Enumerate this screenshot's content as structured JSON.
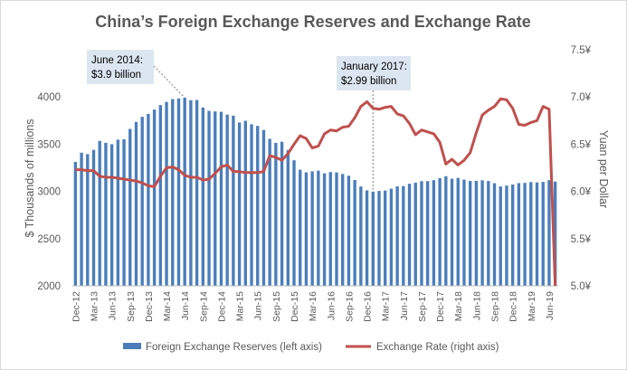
{
  "chart_data": {
    "type": "bar+line",
    "title": "China’s Foreign Exchange Reserves and Exchange Rate",
    "y_left_label": "$ Thousands of millions",
    "y_right_label": "Yuan per Dollar",
    "y_left_range": [
      2000,
      4500
    ],
    "y_left_ticks": [
      "2000",
      "2500",
      "3000",
      "3500",
      "4000"
    ],
    "y_left_tick_values": [
      2000,
      2500,
      3000,
      3500,
      4000
    ],
    "y_right_range": [
      5.0,
      7.5
    ],
    "y_right_ticks": [
      "5.0¥",
      "5.5¥",
      "6.0¥",
      "6.5¥",
      "7.0¥",
      "7.5¥"
    ],
    "y_right_tick_values": [
      5.0,
      5.5,
      6.0,
      6.5,
      7.0,
      7.5
    ],
    "grid": false,
    "legend_position": "bottom",
    "colors": {
      "bars": "#4a7ebb",
      "line": "#c0504d",
      "text": "#595959",
      "axis": "#bfbfbf",
      "annotation_box": "#dce6f1"
    },
    "months": [
      "Dec-12",
      "Jan-13",
      "Feb-13",
      "Mar-13",
      "Apr-13",
      "May-13",
      "Jun-13",
      "Jul-13",
      "Aug-13",
      "Sep-13",
      "Oct-13",
      "Nov-13",
      "Dec-13",
      "Jan-14",
      "Feb-14",
      "Mar-14",
      "Apr-14",
      "May-14",
      "Jun-14",
      "Jul-14",
      "Aug-14",
      "Sep-14",
      "Oct-14",
      "Nov-14",
      "Dec-14",
      "Jan-15",
      "Feb-15",
      "Mar-15",
      "Apr-15",
      "May-15",
      "Jun-15",
      "Jul-15",
      "Aug-15",
      "Sep-15",
      "Oct-15",
      "Nov-15",
      "Dec-15",
      "Jan-16",
      "Feb-16",
      "Mar-16",
      "Apr-16",
      "May-16",
      "Jun-16",
      "Jul-16",
      "Aug-16",
      "Sep-16",
      "Oct-16",
      "Nov-16",
      "Dec-16",
      "Jan-17",
      "Feb-17",
      "Mar-17",
      "Apr-17",
      "May-17",
      "Jun-17",
      "Jul-17",
      "Aug-17",
      "Sep-17",
      "Oct-17",
      "Nov-17",
      "Dec-17",
      "Jan-18",
      "Feb-18",
      "Mar-18",
      "Apr-18",
      "May-18",
      "Jun-18",
      "Jul-18",
      "Aug-18",
      "Sep-18",
      "Oct-18",
      "Nov-18",
      "Dec-18",
      "Jan-19",
      "Feb-19",
      "Mar-19",
      "Apr-19",
      "May-19",
      "Jun-19",
      "Jul-19"
    ],
    "x_tick_labels": [
      "Dec-12",
      "Mar-13",
      "Jun-13",
      "Sep-13",
      "Dec-13",
      "Mar-14",
      "Jun-14",
      "Sep-14",
      "Dec-14",
      "Mar-15",
      "Jun-15",
      "Sep-15",
      "Dec-15",
      "Mar-16",
      "Jun-16",
      "Sep-16",
      "Dec-16",
      "Mar-17",
      "Jun-17",
      "Sep-17",
      "Dec-17",
      "Mar-18",
      "Jun-18",
      "Sep-18",
      "Dec-18",
      "Mar-19",
      "Jun-19"
    ],
    "series": [
      {
        "name": "Foreign Exchange Reserves (left axis)",
        "type": "bar",
        "axis": "left",
        "values": [
          3312,
          3410,
          3395,
          3440,
          3535,
          3515,
          3500,
          3548,
          3553,
          3662,
          3736,
          3790,
          3821,
          3867,
          3914,
          3948,
          3978,
          3984,
          3993,
          3966,
          3968,
          3888,
          3853,
          3847,
          3843,
          3813,
          3802,
          3730,
          3748,
          3711,
          3694,
          3651,
          3557,
          3514,
          3526,
          3438,
          3330,
          3230,
          3202,
          3213,
          3220,
          3192,
          3205,
          3201,
          3185,
          3166,
          3121,
          3052,
          3011,
          2998,
          3005,
          3009,
          3029,
          3054,
          3057,
          3081,
          3092,
          3109,
          3109,
          3119,
          3140,
          3161,
          3134,
          3143,
          3125,
          3111,
          3112,
          3118,
          3110,
          3087,
          3053,
          3062,
          3073,
          3088,
          3090,
          3099,
          3095,
          3101,
          3119,
          3104
        ]
      },
      {
        "name": "Exchange Rate (right axis)",
        "type": "line",
        "axis": "right",
        "values": [
          6.23,
          6.23,
          6.22,
          6.22,
          6.16,
          6.15,
          6.15,
          6.14,
          6.13,
          6.12,
          6.11,
          6.09,
          6.06,
          6.05,
          6.16,
          6.25,
          6.26,
          6.23,
          6.17,
          6.15,
          6.15,
          6.12,
          6.13,
          6.19,
          6.26,
          6.28,
          6.21,
          6.21,
          6.2,
          6.2,
          6.2,
          6.21,
          6.38,
          6.36,
          6.33,
          6.4,
          6.5,
          6.59,
          6.56,
          6.46,
          6.48,
          6.61,
          6.65,
          6.64,
          6.68,
          6.69,
          6.78,
          6.9,
          6.95,
          6.88,
          6.87,
          6.89,
          6.9,
          6.82,
          6.8,
          6.72,
          6.6,
          6.65,
          6.63,
          6.61,
          6.52,
          6.29,
          6.34,
          6.28,
          6.33,
          6.41,
          6.62,
          6.81,
          6.86,
          6.9,
          6.98,
          6.97,
          6.88,
          6.71,
          6.7,
          6.73,
          6.75,
          6.9,
          6.87,
          5.0
        ]
      }
    ],
    "annotations": [
      {
        "line1": "June 2014:",
        "line2": "$3.9 billion",
        "month": "Jun-14",
        "value": 3993
      },
      {
        "line1": "January 2017:",
        "line2": "$2.99 billion",
        "month": "Jan-17",
        "value": 2998
      }
    ]
  }
}
